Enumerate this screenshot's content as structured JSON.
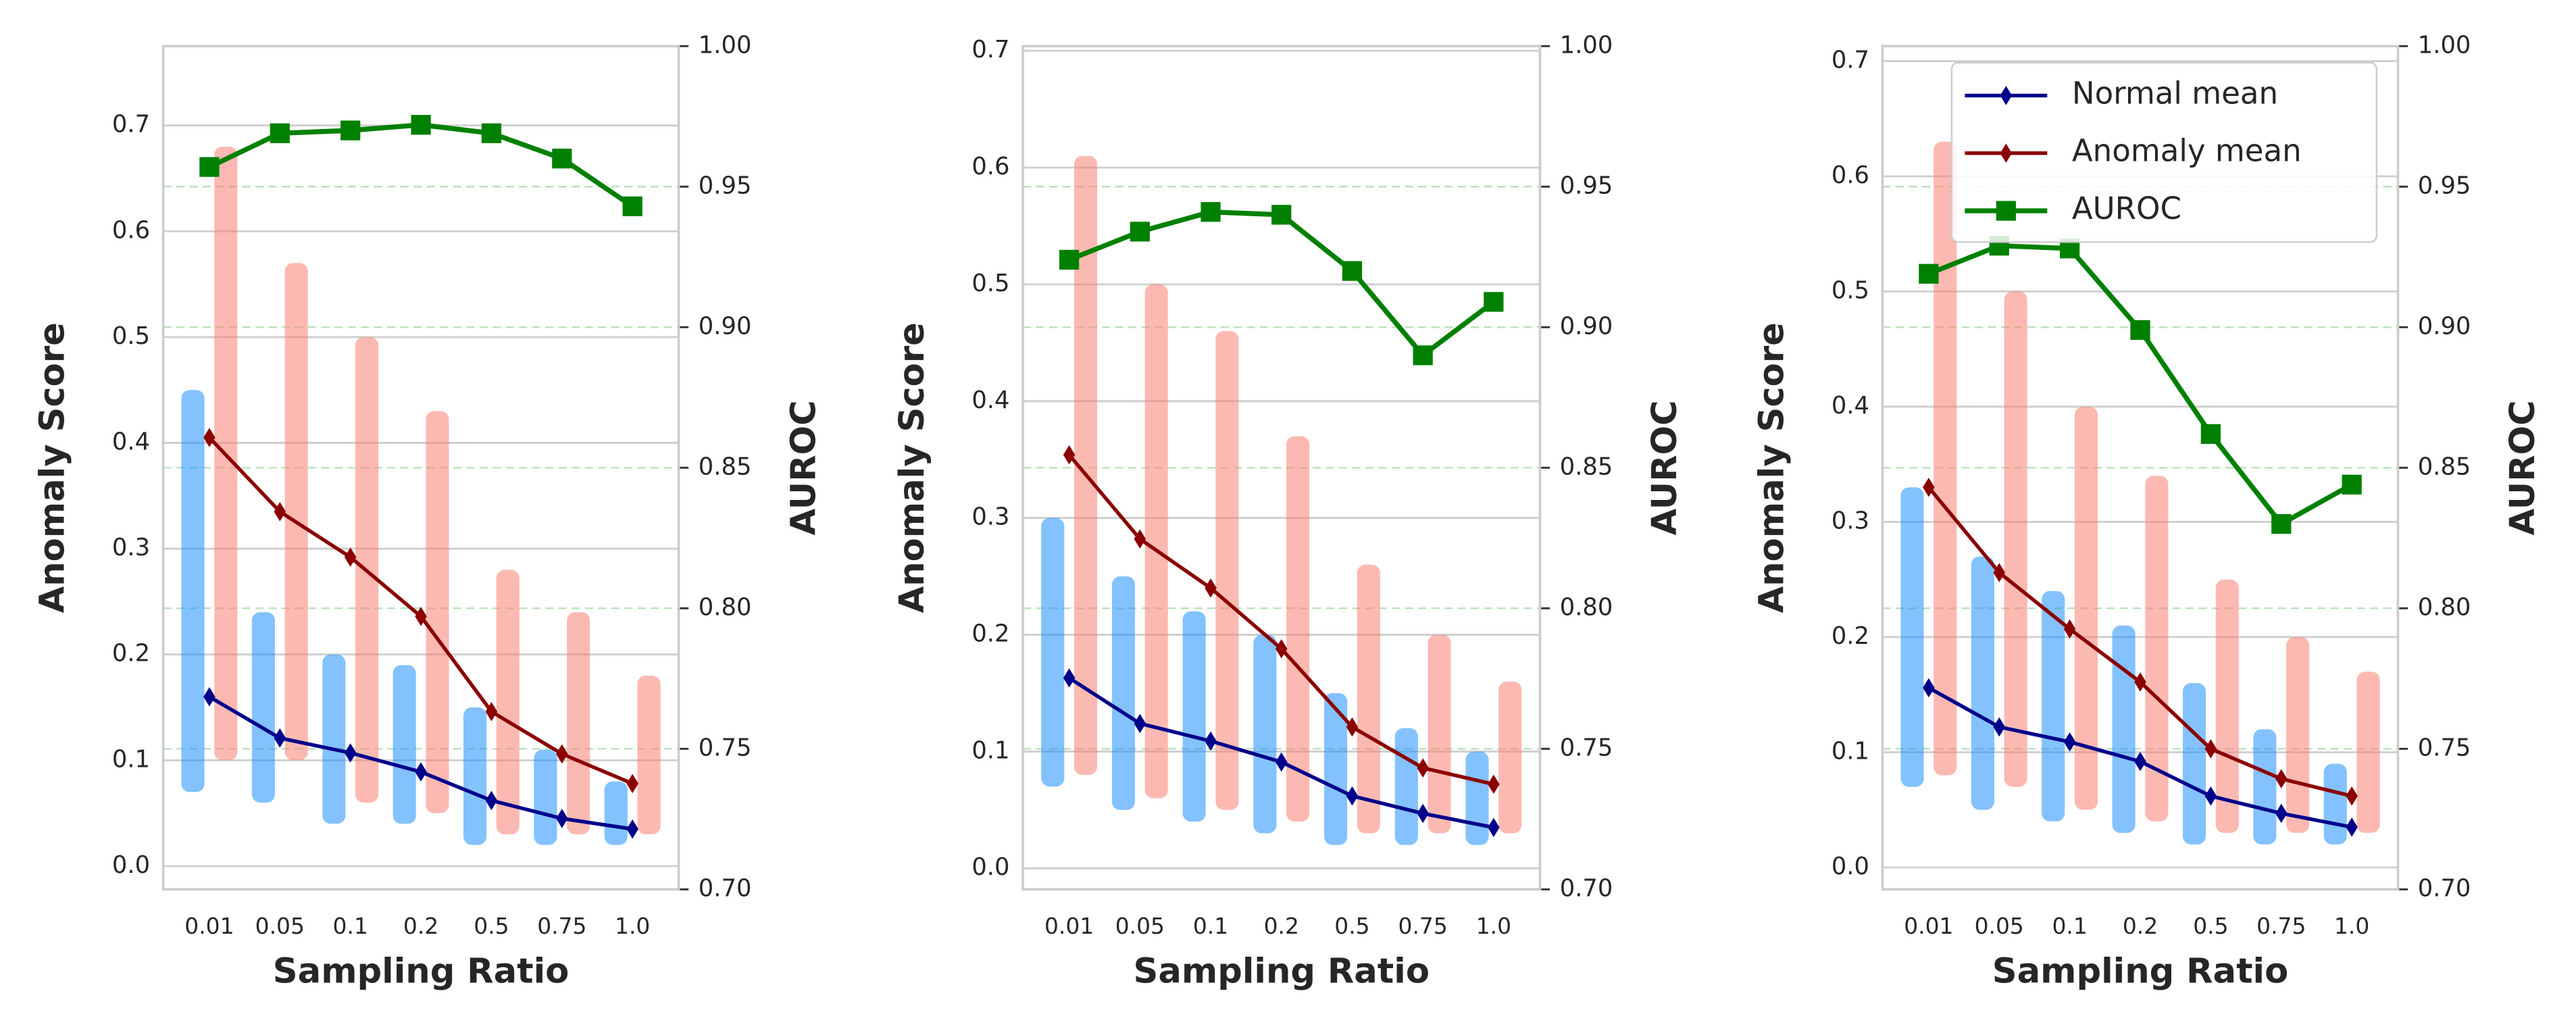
{
  "chart_data": [
    {
      "type": "line",
      "categories": [
        "0.01",
        "0.05",
        "0.1",
        "0.2",
        "0.5",
        "0.75",
        "1.0"
      ],
      "xlabel": "Sampling Ratio",
      "ylabel": "Anomaly Score",
      "y2label": "AUROC",
      "ylim": [
        -0.022,
        0.775
      ],
      "yticks": [
        {
          "value": 0,
          "label": "0.0"
        },
        0.1,
        0.2,
        0.3,
        0.4,
        0.5,
        0.6,
        0.7
      ],
      "y2lim": [
        0.7,
        1.0
      ],
      "y2ticks": [
        {
          "value": 0.7,
          "label": "0.70"
        },
        0.75,
        {
          "value": 0.8,
          "label": "0.80"
        },
        0.85,
        {
          "value": 0.9,
          "label": "0.90"
        },
        0.95,
        {
          "value": 1.0,
          "label": "1.00"
        }
      ],
      "grid": true,
      "clouds": [
        {
          "color": "#1e90ff",
          "low": [
            0.07,
            0.06,
            0.04,
            0.04,
            0.02,
            0.02,
            0.02
          ],
          "high": [
            0.45,
            0.24,
            0.2,
            0.19,
            0.15,
            0.11,
            0.08
          ]
        },
        {
          "color": "#fa8072",
          "low": [
            0.1,
            0.1,
            0.06,
            0.05,
            0.03,
            0.03,
            0.03
          ],
          "high": [
            0.68,
            0.57,
            0.5,
            0.43,
            0.28,
            0.24,
            0.18
          ]
        }
      ],
      "series": [
        {
          "color": "#00008b",
          "marker": "diamond",
          "values": [
            0.16,
            0.121,
            0.107,
            0.089,
            0.062,
            0.045,
            0.035
          ]
        },
        {
          "color": "#8b0000",
          "marker": "diamond",
          "values": [
            0.405,
            0.335,
            0.292,
            0.236,
            0.146,
            0.106,
            0.078
          ]
        },
        {
          "color": "#008000",
          "marker": "square",
          "axis": "y2",
          "values": [
            0.957,
            0.969,
            0.97,
            0.972,
            0.969,
            0.96,
            0.943
          ]
        }
      ]
    },
    {
      "type": "line",
      "categories": [
        "0.01",
        "0.05",
        "0.1",
        "0.2",
        "0.5",
        "0.75",
        "1.0"
      ],
      "xlabel": "Sampling Ratio",
      "ylabel": "Anomaly Score",
      "y2label": "AUROC",
      "ylim": [
        -0.018,
        0.704
      ],
      "yticks": [
        {
          "value": 0,
          "label": "0.0"
        },
        0.1,
        0.2,
        0.3,
        0.4,
        0.5,
        0.6,
        0.7
      ],
      "y2lim": [
        0.7,
        1.0
      ],
      "y2ticks": [
        {
          "value": 0.7,
          "label": "0.70"
        },
        0.75,
        {
          "value": 0.8,
          "label": "0.80"
        },
        0.85,
        {
          "value": 0.9,
          "label": "0.90"
        },
        0.95,
        {
          "value": 1.0,
          "label": "1.00"
        }
      ],
      "grid": true,
      "clouds": [
        {
          "color": "#1e90ff",
          "low": [
            0.07,
            0.05,
            0.04,
            0.03,
            0.02,
            0.02,
            0.02
          ],
          "high": [
            0.3,
            0.25,
            0.22,
            0.2,
            0.15,
            0.12,
            0.1
          ]
        },
        {
          "color": "#fa8072",
          "low": [
            0.08,
            0.06,
            0.05,
            0.04,
            0.03,
            0.03,
            0.03
          ],
          "high": [
            0.61,
            0.5,
            0.46,
            0.37,
            0.26,
            0.2,
            0.16
          ]
        }
      ],
      "series": [
        {
          "color": "#00008b",
          "marker": "diamond",
          "values": [
            0.163,
            0.124,
            0.109,
            0.091,
            0.062,
            0.047,
            0.035
          ]
        },
        {
          "color": "#8b0000",
          "marker": "diamond",
          "values": [
            0.354,
            0.282,
            0.24,
            0.188,
            0.121,
            0.086,
            0.072
          ]
        },
        {
          "color": "#008000",
          "marker": "square",
          "axis": "y2",
          "values": [
            0.924,
            0.934,
            0.941,
            0.94,
            0.92,
            0.89,
            0.909
          ]
        }
      ]
    },
    {
      "type": "line",
      "categories": [
        "0.01",
        "0.05",
        "0.1",
        "0.2",
        "0.5",
        "0.75",
        "1.0"
      ],
      "xlabel": "Sampling Ratio",
      "ylabel": "Anomaly Score",
      "y2label": "AUROC",
      "ylim": [
        -0.019,
        0.713
      ],
      "yticks": [
        {
          "value": 0,
          "label": "0.0"
        },
        0.1,
        0.2,
        0.3,
        0.4,
        0.5,
        0.6,
        0.7
      ],
      "y2lim": [
        0.7,
        1.0
      ],
      "y2ticks": [
        {
          "value": 0.7,
          "label": "0.70"
        },
        0.75,
        {
          "value": 0.8,
          "label": "0.80"
        },
        0.85,
        {
          "value": 0.9,
          "label": "0.90"
        },
        0.95,
        {
          "value": 1.0,
          "label": "1.00"
        }
      ],
      "grid": true,
      "legend": "upper right",
      "clouds": [
        {
          "color": "#1e90ff",
          "low": [
            0.07,
            0.05,
            0.04,
            0.03,
            0.02,
            0.02,
            0.02
          ],
          "high": [
            0.33,
            0.27,
            0.24,
            0.21,
            0.16,
            0.12,
            0.09
          ]
        },
        {
          "color": "#fa8072",
          "low": [
            0.08,
            0.07,
            0.05,
            0.04,
            0.03,
            0.03,
            0.03
          ],
          "high": [
            0.63,
            0.5,
            0.4,
            0.34,
            0.25,
            0.2,
            0.17
          ]
        }
      ],
      "series": [
        {
          "name": "Normal mean",
          "color": "#00008b",
          "marker": "diamond",
          "values": [
            0.156,
            0.122,
            0.109,
            0.092,
            0.062,
            0.047,
            0.035
          ]
        },
        {
          "name": "Anomaly mean",
          "color": "#8b0000",
          "marker": "diamond",
          "values": [
            0.33,
            0.256,
            0.207,
            0.161,
            0.103,
            0.077,
            0.062
          ]
        },
        {
          "name": "AUROC",
          "color": "#008000",
          "marker": "square",
          "axis": "y2",
          "values": [
            0.919,
            0.929,
            0.928,
            0.899,
            0.862,
            0.83,
            0.844
          ]
        }
      ]
    }
  ]
}
